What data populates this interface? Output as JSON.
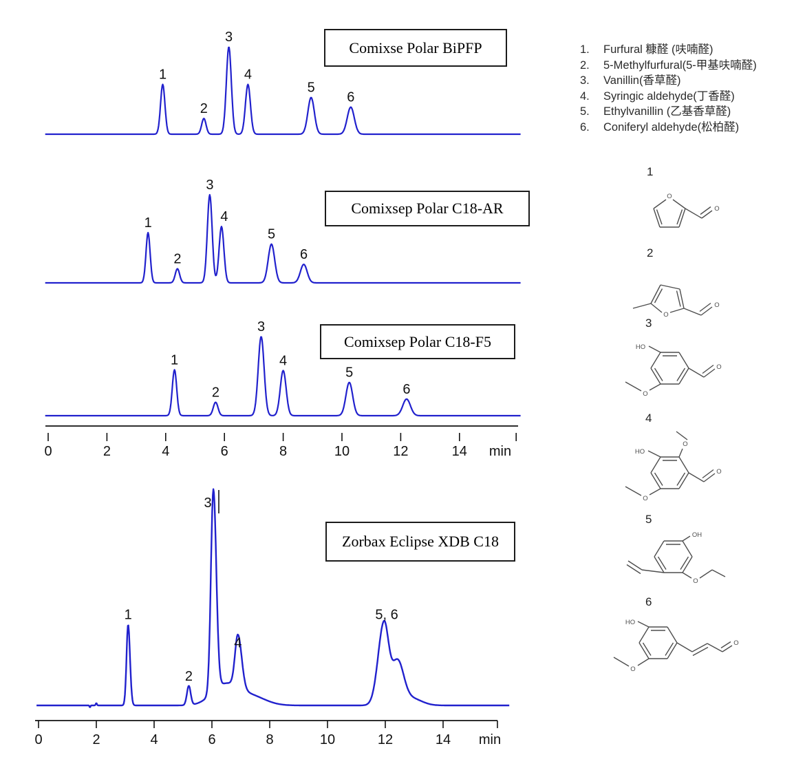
{
  "chart_data": [
    {
      "type": "line",
      "title": "Comixse Polar BiPFP",
      "xlabel": "min",
      "x_ticks": [
        0,
        2,
        4,
        6,
        8,
        10,
        12,
        14
      ],
      "x_range": [
        0,
        16
      ],
      "trace_color": "#2121cd",
      "peaks": [
        {
          "label": "1",
          "rt_min": 3.9,
          "rel_height": 0.57,
          "sigma_min": 0.075
        },
        {
          "label": "2",
          "rt_min": 5.3,
          "rel_height": 0.18,
          "sigma_min": 0.075
        },
        {
          "label": "3",
          "rt_min": 6.15,
          "rel_height": 1.0,
          "sigma_min": 0.085
        },
        {
          "label": "4",
          "rt_min": 6.8,
          "rel_height": 0.57,
          "sigma_min": 0.085
        },
        {
          "label": "5",
          "rt_min": 8.95,
          "rel_height": 0.42,
          "sigma_min": 0.11
        },
        {
          "label": "6",
          "rt_min": 10.3,
          "rel_height": 0.31,
          "sigma_min": 0.12
        }
      ],
      "peak_labels": [
        {
          "text": "1",
          "rt_min": 3.9,
          "rel_height": 0.57
        },
        {
          "text": "2",
          "rt_min": 5.3,
          "rel_height": 0.18
        },
        {
          "text": "3",
          "rt_min": 6.15,
          "rel_height": 1.0
        },
        {
          "text": "4",
          "rt_min": 6.8,
          "rel_height": 0.57
        },
        {
          "text": "5",
          "rt_min": 8.95,
          "rel_height": 0.42
        },
        {
          "text": "6",
          "rt_min": 10.3,
          "rel_height": 0.31
        }
      ]
    },
    {
      "type": "line",
      "title": "Comixsep Polar C18-AR",
      "xlabel": "min",
      "x_ticks": [
        0,
        2,
        4,
        6,
        8,
        10,
        12,
        14
      ],
      "x_range": [
        0,
        16
      ],
      "trace_color": "#2121cd",
      "peaks": [
        {
          "label": "1",
          "rt_min": 3.4,
          "rel_height": 0.57,
          "sigma_min": 0.07
        },
        {
          "label": "2",
          "rt_min": 4.4,
          "rel_height": 0.16,
          "sigma_min": 0.075
        },
        {
          "label": "3",
          "rt_min": 5.5,
          "rel_height": 1.0,
          "sigma_min": 0.082
        },
        {
          "label": "4",
          "rt_min": 5.9,
          "rel_height": 0.64,
          "sigma_min": 0.082
        },
        {
          "label": "5",
          "rt_min": 7.6,
          "rel_height": 0.44,
          "sigma_min": 0.11
        },
        {
          "label": "6",
          "rt_min": 8.7,
          "rel_height": 0.21,
          "sigma_min": 0.115
        }
      ],
      "peak_labels": [
        {
          "text": "1",
          "rt_min": 3.4,
          "rel_height": 0.57
        },
        {
          "text": "2",
          "rt_min": 4.4,
          "rel_height": 0.16
        },
        {
          "text": "3",
          "rt_min": 5.5,
          "rel_height": 1.0
        },
        {
          "text": "4",
          "rt_min": 5.9,
          "rel_height": 0.64,
          "dx": 4
        },
        {
          "text": "5",
          "rt_min": 7.6,
          "rel_height": 0.44
        },
        {
          "text": "6",
          "rt_min": 8.7,
          "rel_height": 0.21
        }
      ]
    },
    {
      "type": "line",
      "title": "Comixsep Polar C18-F5",
      "xlabel": "min",
      "x_ticks": [
        0,
        2,
        4,
        6,
        8,
        10,
        12,
        14
      ],
      "x_range": [
        0,
        16
      ],
      "trace_color": "#2121cd",
      "peaks": [
        {
          "label": "1",
          "rt_min": 4.3,
          "rel_height": 0.58,
          "sigma_min": 0.075
        },
        {
          "label": "2",
          "rt_min": 5.7,
          "rel_height": 0.17,
          "sigma_min": 0.08
        },
        {
          "label": "3",
          "rt_min": 7.25,
          "rel_height": 1.0,
          "sigma_min": 0.1
        },
        {
          "label": "4",
          "rt_min": 8.0,
          "rel_height": 0.57,
          "sigma_min": 0.1
        },
        {
          "label": "5",
          "rt_min": 10.25,
          "rel_height": 0.42,
          "sigma_min": 0.115
        },
        {
          "label": "6",
          "rt_min": 12.2,
          "rel_height": 0.21,
          "sigma_min": 0.13
        }
      ],
      "peak_labels": [
        {
          "text": "1",
          "rt_min": 4.3,
          "rel_height": 0.58
        },
        {
          "text": "2",
          "rt_min": 5.7,
          "rel_height": 0.17
        },
        {
          "text": "3",
          "rt_min": 7.25,
          "rel_height": 1.0
        },
        {
          "text": "4",
          "rt_min": 8.0,
          "rel_height": 0.57
        },
        {
          "text": "5",
          "rt_min": 10.25,
          "rel_height": 0.42
        },
        {
          "text": "6",
          "rt_min": 12.2,
          "rel_height": 0.21
        }
      ]
    },
    {
      "type": "line",
      "title": "Zorbax Eclipse XDB C18",
      "xlabel": "min",
      "x_ticks": [
        0,
        2,
        4,
        6,
        8,
        10,
        12,
        14
      ],
      "x_range": [
        0,
        16
      ],
      "trace_color": "#2121cd",
      "peaks": [
        {
          "label": "1",
          "rt_min": 3.1,
          "rel_height": 0.4
        },
        {
          "label": "2",
          "rt_min": 5.2,
          "rel_height": 0.095
        },
        {
          "label": "3",
          "rt_min": 6.05,
          "rel_height": 1.0
        },
        {
          "label": "4",
          "rt_min": 6.9,
          "rel_height": 0.26
        },
        {
          "label": "5",
          "rt_min": 11.95,
          "rel_height": 0.4
        },
        {
          "label": "6",
          "rt_min": 12.4,
          "rel_height": 0.22
        }
      ],
      "peak_labels": [
        {
          "text": "1",
          "rt_min": 3.1,
          "rel_height": 0.4
        },
        {
          "text": "2",
          "rt_min": 5.2,
          "rel_height": 0.095
        },
        {
          "text": "3",
          "rt_min": 6.05,
          "rel_height": 1.0,
          "dx": -8,
          "dy": 14
        },
        {
          "text": "4",
          "rt_min": 6.9,
          "rel_height": 0.26
        },
        {
          "text": "5, 6",
          "rt_min": 12.05,
          "rel_height": 0.4
        }
      ],
      "trace_components": [
        {
          "rt_min": 3.1,
          "rel_height": 0.4,
          "sigma_left_min": 0.055,
          "sigma_right_min": 0.065
        },
        {
          "rt_min": 5.2,
          "rel_height": 0.095,
          "sigma_min": 0.065
        },
        {
          "rt_min": 6.05,
          "rel_height": 1.0,
          "sigma_left_min": 0.085,
          "sigma_right_min": 0.1
        },
        {
          "rt_min": 6.45,
          "rel_height": 0.1,
          "sigma_min": 0.45
        },
        {
          "rt_min": 6.9,
          "rel_height": 0.26,
          "sigma_left_min": 0.1,
          "sigma_right_min": 0.13
        },
        {
          "rt_min": 7.35,
          "rel_height": 0.045,
          "sigma_min": 0.5
        },
        {
          "rt_min": 11.95,
          "rel_height": 0.4,
          "sigma_left_min": 0.2,
          "sigma_right_min": 0.16
        },
        {
          "rt_min": 12.42,
          "rel_height": 0.21,
          "sigma_min": 0.21
        },
        {
          "rt_min": 12.9,
          "rel_height": 0.035,
          "sigma_min": 0.35
        },
        {
          "rt_min": 2.0,
          "rel_height": 0.012,
          "sigma_min": 0.02
        },
        {
          "rt_min": 1.78,
          "rel_height": -0.01,
          "sigma_min": 0.015
        }
      ]
    }
  ],
  "time_axes": [
    {
      "ticks": [
        "0",
        "2",
        "4",
        "6",
        "8",
        "10",
        "12",
        "14"
      ],
      "unit": "min"
    },
    {
      "ticks": [
        "0",
        "2",
        "4",
        "6",
        "8",
        "10",
        "12",
        "14"
      ],
      "unit": "min"
    }
  ],
  "legend": {
    "items": [
      {
        "num": "1.",
        "text": "Furfural 糠醛 (呋喃醛)"
      },
      {
        "num": "2.",
        "text": "5-Methylfurfural(5-甲基呋喃醛)"
      },
      {
        "num": "3.",
        "text": "Vanillin(香草醛)"
      },
      {
        "num": "4.",
        "text": "Syringic aldehyde(丁香醛)"
      },
      {
        "num": "5.",
        "text": "Ethylvanillin (乙基香草醛)"
      },
      {
        "num": "6.",
        "text": "Coniferyl aldehyde(松柏醛)"
      }
    ]
  },
  "structures": [
    {
      "label": "1",
      "name": "furfural",
      "atoms": [
        "O",
        "O"
      ]
    },
    {
      "label": "2",
      "name": "5-methylfurfural",
      "atoms": [
        "O",
        "O"
      ]
    },
    {
      "label": "3",
      "name": "vanillin",
      "atoms": [
        "HO",
        "O",
        "O"
      ]
    },
    {
      "label": "4",
      "name": "syringic-aldehyde",
      "atoms": [
        "O",
        "HO",
        "O",
        "O"
      ]
    },
    {
      "label": "5",
      "name": "ethylvanillin",
      "atoms": [
        "OH",
        "O"
      ]
    },
    {
      "label": "6",
      "name": "coniferyl-aldehyde",
      "atoms": [
        "HO",
        "O",
        "O"
      ]
    }
  ]
}
